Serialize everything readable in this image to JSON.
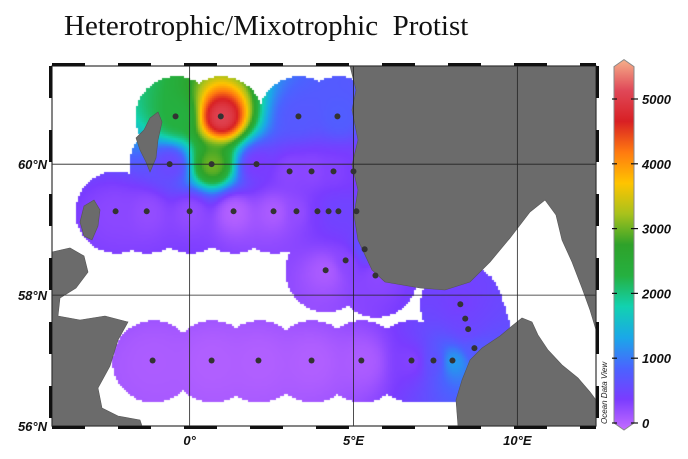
{
  "title": "Heterotrophic/Mixotrophic  Protist",
  "watermark": "Ocean Data View",
  "chart_data": {
    "type": "map-contour",
    "xlim": [
      -4.2,
      12.4
    ],
    "ylim": [
      56.0,
      61.5
    ],
    "x_ticks": [
      {
        "value": 0,
        "label": "0°"
      },
      {
        "value": 5,
        "label": "5°E"
      },
      {
        "value": 10,
        "label": "10°E"
      }
    ],
    "y_ticks": [
      {
        "value": 56,
        "label": "56°N"
      },
      {
        "value": 58,
        "label": "58°N"
      },
      {
        "value": 60,
        "label": "60°N"
      }
    ],
    "grid": true,
    "colorbar": {
      "range": [
        0,
        5500
      ],
      "ticks": [
        0,
        1000,
        2000,
        3000,
        4000,
        5000
      ],
      "tick_labels": [
        "0",
        "1000",
        "2000",
        "3000",
        "4000",
        "5000"
      ],
      "placement": "right",
      "colors": [
        "#c46cff",
        "#7a3cff",
        "#4a63ff",
        "#1aa8e8",
        "#12d2b0",
        "#25b040",
        "#2ea22a",
        "#a8c21c",
        "#ffc400",
        "#ff7a10",
        "#d82024",
        "#e04858",
        "#f6b08a"
      ]
    },
    "land_color": "#6b6b6b",
    "station_color": "#333333",
    "stations": [
      {
        "lon": -0.43,
        "lat": 60.73,
        "value": 2300
      },
      {
        "lon": 0.95,
        "lat": 60.73,
        "value": 5000
      },
      {
        "lon": 3.32,
        "lat": 60.73,
        "value": 800
      },
      {
        "lon": 4.51,
        "lat": 60.73,
        "value": 850
      },
      {
        "lon": -0.61,
        "lat": 60.0,
        "value": 600
      },
      {
        "lon": 0.67,
        "lat": 60.0,
        "value": 3000
      },
      {
        "lon": 2.04,
        "lat": 60.0,
        "value": 450
      },
      {
        "lon": 3.05,
        "lat": 59.89,
        "value": 350
      },
      {
        "lon": 3.72,
        "lat": 59.89,
        "value": 350
      },
      {
        "lon": 4.39,
        "lat": 59.89,
        "value": 400
      },
      {
        "lon": 5.0,
        "lat": 59.89,
        "value": 450
      },
      {
        "lon": -2.26,
        "lat": 59.28,
        "value": 350
      },
      {
        "lon": -1.31,
        "lat": 59.28,
        "value": 300
      },
      {
        "lon": 0.0,
        "lat": 59.28,
        "value": 300
      },
      {
        "lon": 1.34,
        "lat": 59.28,
        "value": 100
      },
      {
        "lon": 2.56,
        "lat": 59.28,
        "value": 150
      },
      {
        "lon": 3.26,
        "lat": 59.28,
        "value": 300
      },
      {
        "lon": 3.9,
        "lat": 59.28,
        "value": 450
      },
      {
        "lon": 4.24,
        "lat": 59.28,
        "value": 550
      },
      {
        "lon": 4.54,
        "lat": 59.28,
        "value": 550
      },
      {
        "lon": 5.09,
        "lat": 59.28,
        "value": 550
      },
      {
        "lon": 5.34,
        "lat": 58.7,
        "value": 700
      },
      {
        "lon": 4.76,
        "lat": 58.53,
        "value": 350
      },
      {
        "lon": 4.15,
        "lat": 58.38,
        "value": 150
      },
      {
        "lon": 5.67,
        "lat": 58.3,
        "value": 350
      },
      {
        "lon": 8.26,
        "lat": 57.86,
        "value": 500
      },
      {
        "lon": 8.41,
        "lat": 57.64,
        "value": 550
      },
      {
        "lon": 8.5,
        "lat": 57.48,
        "value": 600
      },
      {
        "lon": 8.69,
        "lat": 57.19,
        "value": 800
      },
      {
        "lon": -1.13,
        "lat": 57.0,
        "value": 150
      },
      {
        "lon": 0.67,
        "lat": 57.0,
        "value": 120
      },
      {
        "lon": 2.1,
        "lat": 57.0,
        "value": 120
      },
      {
        "lon": 3.72,
        "lat": 57.0,
        "value": 120
      },
      {
        "lon": 5.24,
        "lat": 57.0,
        "value": 150
      },
      {
        "lon": 6.77,
        "lat": 57.0,
        "value": 400
      },
      {
        "lon": 7.44,
        "lat": 57.0,
        "value": 700
      },
      {
        "lon": 8.02,
        "lat": 57.0,
        "value": 1300
      }
    ]
  }
}
